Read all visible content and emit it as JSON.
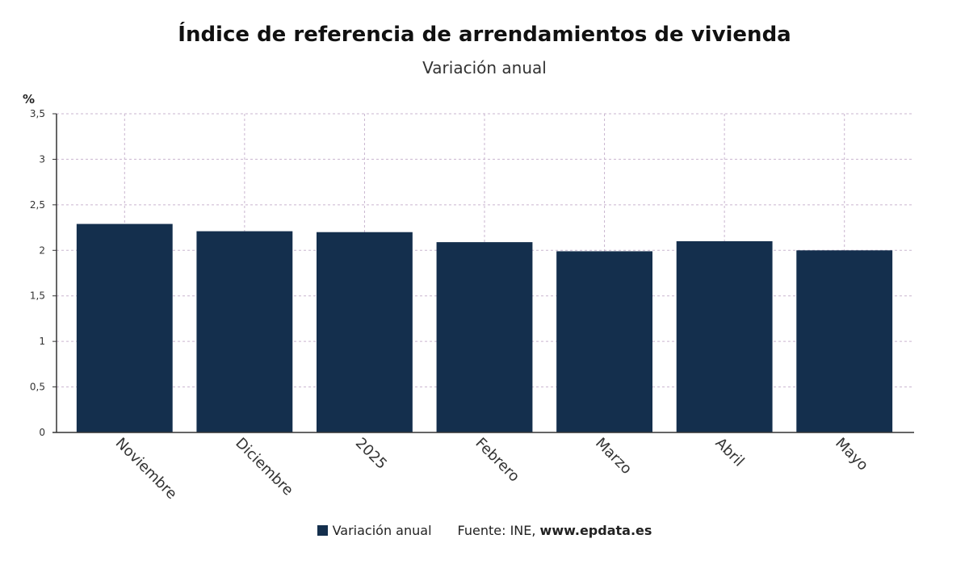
{
  "colors": {
    "bar": "#142f4d",
    "grid": "#c9b5cf",
    "axis": "#333333"
  },
  "chart_data": {
    "type": "bar",
    "title": "Índice de referencia de arrendamientos de vivienda",
    "subtitle": "Variación anual",
    "ylabel": "%",
    "xlabel": "",
    "categories": [
      "Noviembre",
      "Diciembre",
      "2025",
      "Febrero",
      "Marzo",
      "Abril",
      "Mayo"
    ],
    "series": [
      {
        "name": "Variación anual",
        "values": [
          2.29,
          2.21,
          2.2,
          2.09,
          1.99,
          2.1,
          2.0
        ]
      }
    ],
    "ylim": [
      0,
      3.5
    ],
    "yticks": [
      "0",
      "0,5",
      "1",
      "1,5",
      "2",
      "2,5",
      "3",
      "3,5"
    ],
    "grid": true,
    "legend": "bottom-center"
  },
  "source": {
    "label": "Fuente: INE,",
    "site": "www.epdata.es"
  }
}
